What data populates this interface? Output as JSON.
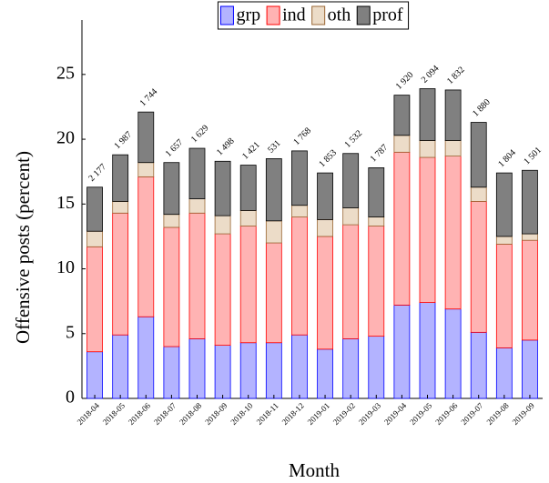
{
  "chart_data": {
    "type": "stacked_bar",
    "x_label": "Month",
    "y_label": "Offensive posts (percent)",
    "categories": [
      "2018-04",
      "2018-05",
      "2018-06",
      "2018-07",
      "2018-08",
      "2018-09",
      "2018-10",
      "2018-11",
      "2018-12",
      "2019-01",
      "2019-02",
      "2019-03",
      "2019-04",
      "2019-05",
      "2019-06",
      "2019-07",
      "2019-08",
      "2019-09"
    ],
    "series": [
      {
        "name": "grp",
        "color": "#b3b3ff",
        "stroke": "#0000ff",
        "values": [
          3.6,
          4.9,
          6.3,
          4.0,
          4.6,
          4.1,
          4.3,
          4.3,
          4.9,
          3.8,
          4.6,
          4.8,
          7.2,
          7.4,
          6.9,
          5.1,
          3.9,
          4.5
        ]
      },
      {
        "name": "ind",
        "color": "#ffb3b3",
        "stroke": "#ff0000",
        "values": [
          8.1,
          9.4,
          10.8,
          9.2,
          9.7,
          8.6,
          9.0,
          7.7,
          9.1,
          8.7,
          8.8,
          8.5,
          11.8,
          11.2,
          11.8,
          10.1,
          8.0,
          7.7
        ]
      },
      {
        "name": "oth",
        "color": "#ecdcc8",
        "stroke": "#996633",
        "values": [
          1.2,
          0.9,
          1.1,
          1.0,
          1.1,
          1.4,
          1.2,
          1.7,
          0.9,
          1.3,
          1.3,
          0.7,
          1.3,
          1.3,
          1.2,
          1.1,
          0.6,
          0.5
        ]
      },
      {
        "name": "prof",
        "color": "#808080",
        "stroke": "#000000",
        "values": [
          3.4,
          3.6,
          3.9,
          4.0,
          3.9,
          4.2,
          3.5,
          4.8,
          4.2,
          3.6,
          4.2,
          3.8,
          3.1,
          4.0,
          3.9,
          5.0,
          4.9,
          4.9
        ]
      }
    ],
    "annotations": [
      "2 177",
      "1 987",
      "1 744",
      "1 657",
      "1 629",
      "1 498",
      "1 421",
      "531",
      "1 768",
      "1 853",
      "1 532",
      "1 787",
      "1 920",
      "2 094",
      "1 832",
      "1 880",
      "1 804",
      "1 501"
    ],
    "ylim": [
      0,
      29.2
    ],
    "yticks": [
      0,
      5,
      10,
      15,
      20,
      25
    ],
    "legend": "top"
  }
}
